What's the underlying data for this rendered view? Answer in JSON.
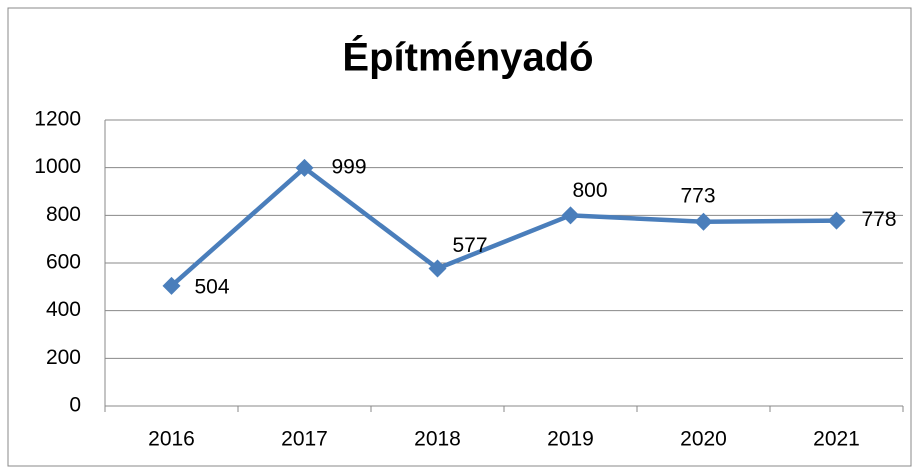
{
  "chart_data": {
    "type": "line",
    "title": "Építményadó",
    "categories": [
      "2016",
      "2017",
      "2018",
      "2019",
      "2020",
      "2021"
    ],
    "series": [
      {
        "name": "Építményadó",
        "color": "#4a7ebb",
        "values": [
          504,
          999,
          577,
          800,
          773,
          778
        ]
      }
    ],
    "ylim": [
      0,
      1200
    ],
    "yticks": [
      0,
      200,
      400,
      600,
      800,
      1000,
      1200
    ],
    "grid": true
  }
}
